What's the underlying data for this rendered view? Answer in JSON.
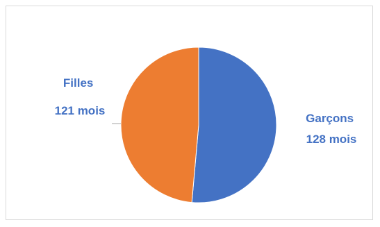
{
  "chart_data": {
    "type": "pie",
    "title": "",
    "slices": [
      {
        "name": "Garçons",
        "value": 128,
        "unit": "mois",
        "color": "#4472c4"
      },
      {
        "name": "Filles",
        "value": 121,
        "unit": "mois",
        "color": "#ed7d31"
      }
    ],
    "labels": [
      {
        "line1": "Garçons",
        "line2": "128 mois"
      },
      {
        "line1": "Filles",
        "line2": "121 mois"
      }
    ],
    "label_color": "#4472c4",
    "start_angle_deg": 0,
    "direction": "clockwise"
  }
}
